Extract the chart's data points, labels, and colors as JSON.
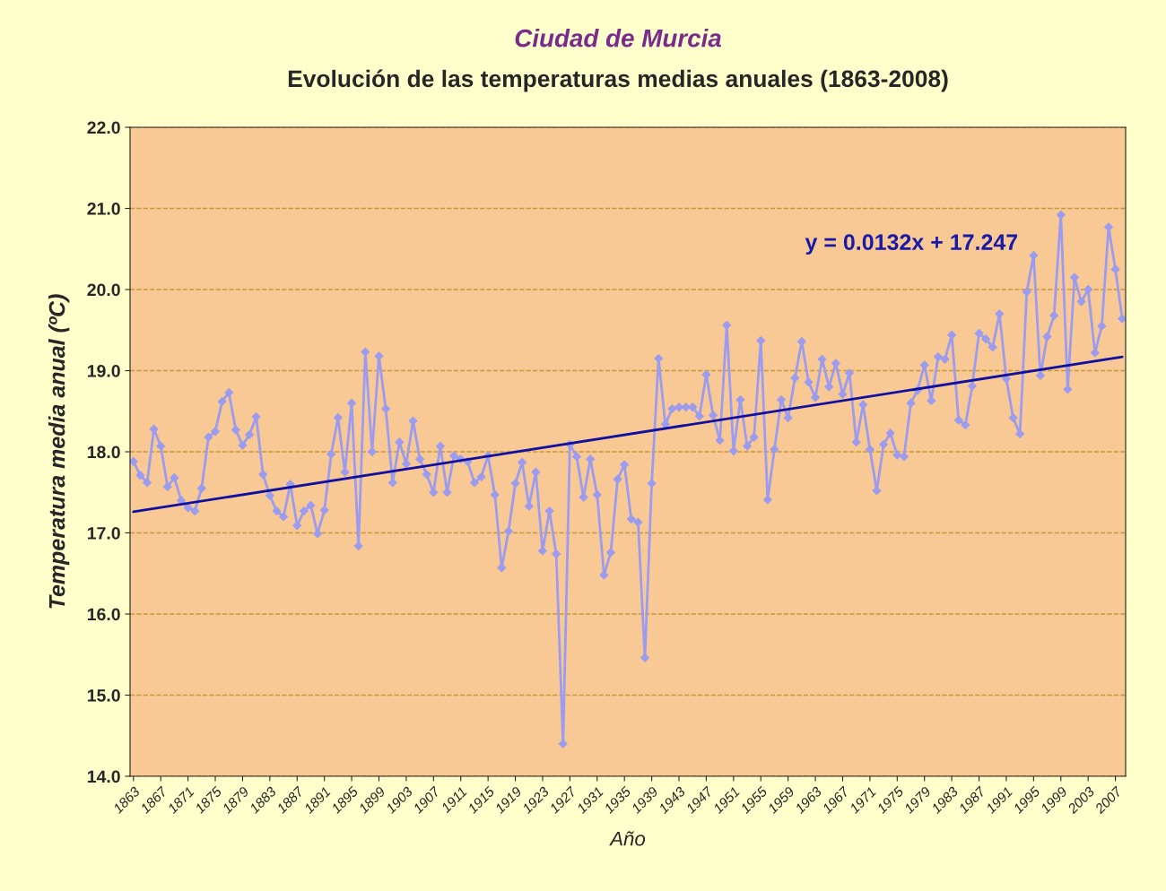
{
  "chart_data": {
    "type": "line",
    "title": "Ciudad de Murcia",
    "subtitle": "Evolución de las temperaturas medias anuales (1863-2008)",
    "xlabel": "Año",
    "ylabel": "Temperatura media anual (ºC)",
    "x": [
      1863,
      1864,
      1865,
      1866,
      1867,
      1868,
      1869,
      1870,
      1871,
      1872,
      1873,
      1874,
      1875,
      1876,
      1877,
      1878,
      1879,
      1880,
      1881,
      1882,
      1883,
      1884,
      1885,
      1886,
      1887,
      1888,
      1889,
      1890,
      1891,
      1892,
      1893,
      1894,
      1895,
      1896,
      1897,
      1898,
      1899,
      1900,
      1901,
      1902,
      1903,
      1904,
      1905,
      1906,
      1907,
      1908,
      1909,
      1910,
      1911,
      1912,
      1913,
      1914,
      1915,
      1916,
      1917,
      1918,
      1919,
      1920,
      1921,
      1922,
      1923,
      1924,
      1925,
      1926,
      1927,
      1928,
      1929,
      1930,
      1931,
      1932,
      1933,
      1934,
      1935,
      1936,
      1937,
      1938,
      1939,
      1940,
      1941,
      1942,
      1943,
      1944,
      1945,
      1946,
      1947,
      1948,
      1949,
      1950,
      1951,
      1952,
      1953,
      1954,
      1955,
      1956,
      1957,
      1958,
      1959,
      1960,
      1961,
      1962,
      1963,
      1964,
      1965,
      1966,
      1967,
      1968,
      1969,
      1970,
      1971,
      1972,
      1973,
      1974,
      1975,
      1976,
      1977,
      1978,
      1979,
      1980,
      1981,
      1982,
      1983,
      1984,
      1985,
      1986,
      1987,
      1988,
      1989,
      1990,
      1991,
      1992,
      1993,
      1994,
      1995,
      1996,
      1997,
      1998,
      1999,
      2000,
      2001,
      2002,
      2003,
      2004,
      2005,
      2006,
      2007,
      2008
    ],
    "series": [
      {
        "color": "#9b9bf0",
        "marker": "diamond",
        "values": [
          17.88,
          17.71,
          17.62,
          18.28,
          18.07,
          17.57,
          17.68,
          17.4,
          17.31,
          17.27,
          17.55,
          18.18,
          18.25,
          18.62,
          18.73,
          18.27,
          18.08,
          18.21,
          18.43,
          17.72,
          17.46,
          17.27,
          17.2,
          17.6,
          17.09,
          17.27,
          17.34,
          16.99,
          17.28,
          17.97,
          18.42,
          17.75,
          18.6,
          16.84,
          19.23,
          18.0,
          19.18,
          18.53,
          17.62,
          18.12,
          17.85,
          18.38,
          17.91,
          17.72,
          17.5,
          18.07,
          17.5,
          17.95,
          17.91,
          17.88,
          17.62,
          17.69,
          17.95,
          17.47,
          16.57,
          17.02,
          17.61,
          17.87,
          17.33,
          17.75,
          16.78,
          17.27,
          16.74,
          14.4,
          18.09,
          17.94,
          17.44,
          17.91,
          17.47,
          16.48,
          16.76,
          17.66,
          17.84,
          17.17,
          17.13,
          15.46,
          17.61,
          19.15,
          18.34,
          18.53,
          18.55,
          18.55,
          18.55,
          18.44,
          18.95,
          18.45,
          18.14,
          19.56,
          18.01,
          18.64,
          18.07,
          18.18,
          19.37,
          17.41,
          18.03,
          18.64,
          18.42,
          18.91,
          19.36,
          18.86,
          18.67,
          19.14,
          18.8,
          19.09,
          18.71,
          18.97,
          18.12,
          18.58,
          18.03,
          17.52,
          18.09,
          18.23,
          17.96,
          17.94,
          18.6,
          18.76,
          19.07,
          18.63,
          19.17,
          19.14,
          19.44,
          18.39,
          18.33,
          18.81,
          19.46,
          19.39,
          19.29,
          19.7,
          18.9,
          18.42,
          18.22,
          19.97,
          20.42,
          18.94,
          19.42,
          19.68,
          20.92,
          18.77,
          20.15,
          19.85,
          20.0,
          19.22,
          19.55,
          20.77,
          20.25,
          19.64
        ]
      },
      {
        "color": "#1010a0",
        "marker": "none",
        "x": [
          1863,
          2008
        ],
        "values": [
          17.26,
          19.17
        ]
      }
    ],
    "annotations": [
      "y = 0.0132x + 17.247"
    ],
    "xlim": [
      1862.5,
      2008.5
    ],
    "xticks": [
      1863,
      1867,
      1871,
      1875,
      1879,
      1883,
      1887,
      1891,
      1895,
      1899,
      1903,
      1907,
      1911,
      1915,
      1919,
      1923,
      1927,
      1931,
      1935,
      1939,
      1943,
      1947,
      1951,
      1955,
      1959,
      1963,
      1967,
      1971,
      1975,
      1979,
      1983,
      1987,
      1991,
      1995,
      1999,
      2003,
      2007
    ],
    "ylim": [
      14,
      22
    ],
    "yticks": [
      {
        "value": 14,
        "label": "14.0"
      },
      {
        "value": 15,
        "label": "15.0"
      },
      {
        "value": 16,
        "label": "16.0"
      },
      {
        "value": 17,
        "label": "17.0"
      },
      {
        "value": 18,
        "label": "18.0"
      },
      {
        "value": 19,
        "label": "19.0"
      },
      {
        "value": 20,
        "label": "20.0"
      },
      {
        "value": 21,
        "label": "21.0"
      },
      {
        "value": 22,
        "label": "22.0"
      }
    ],
    "grid": "y",
    "line_style": "solid"
  }
}
